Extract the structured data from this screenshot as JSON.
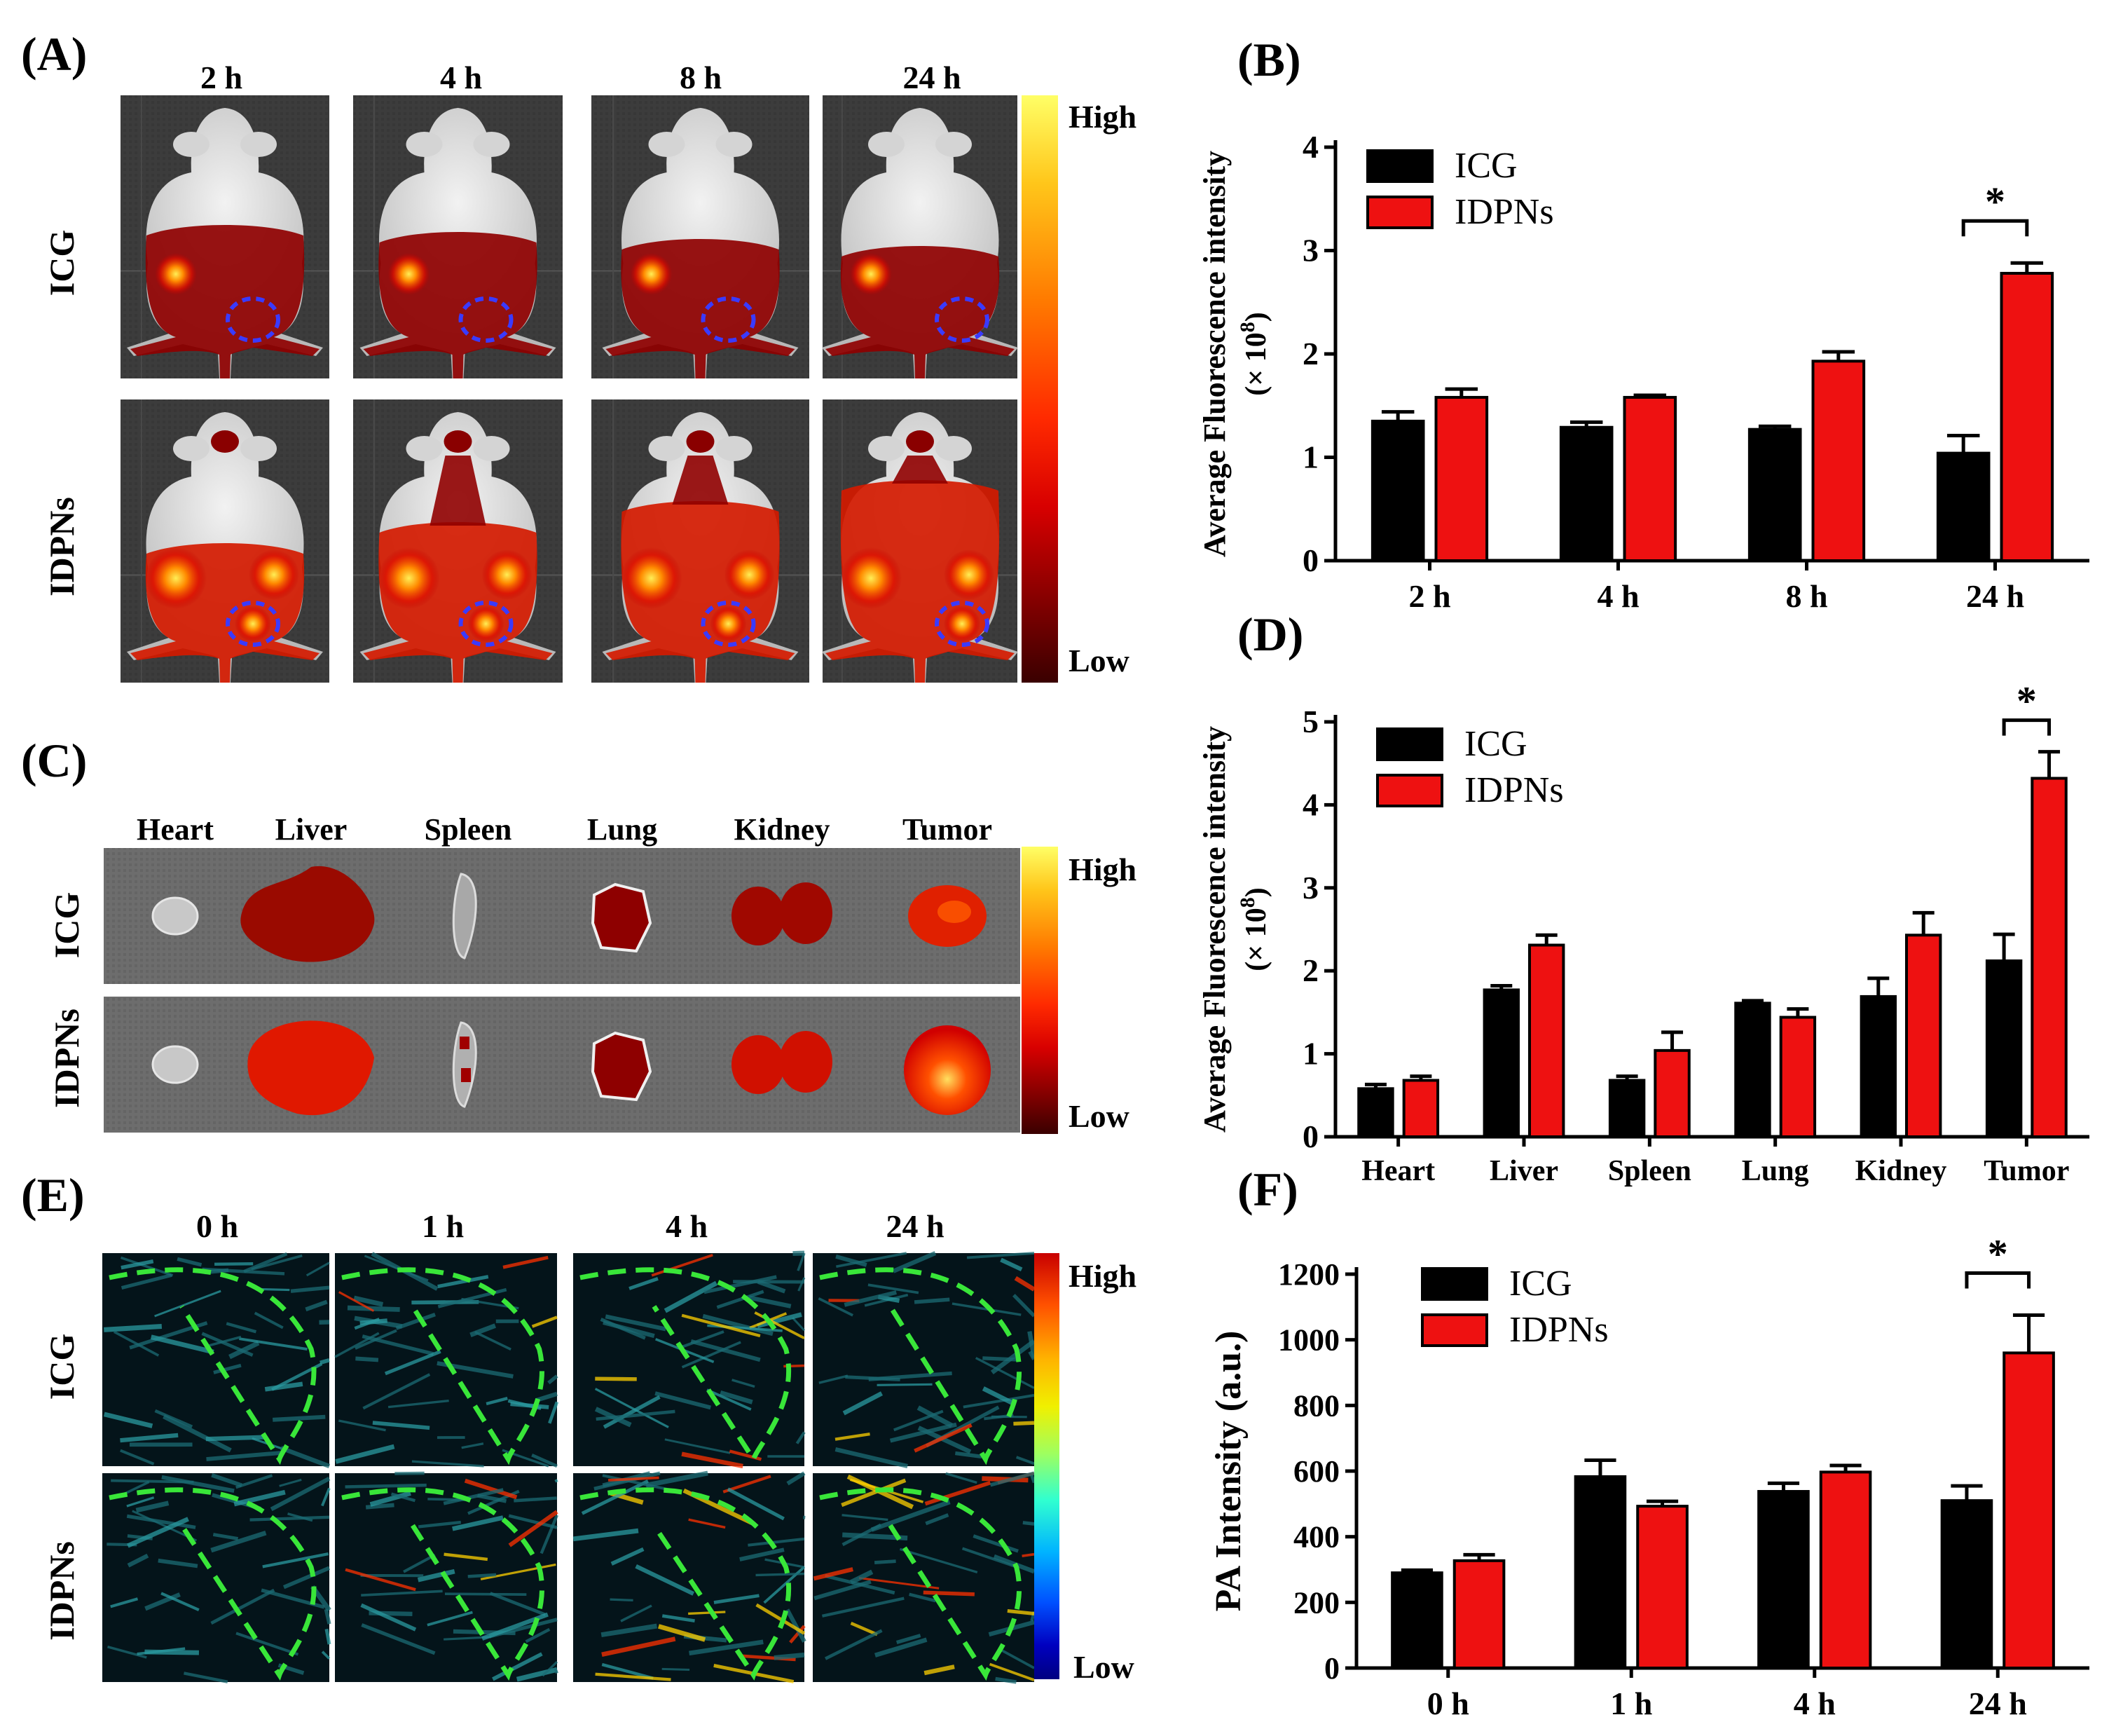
{
  "colors": {
    "icg": "#000000",
    "idpns": "#ee1111",
    "hot_scale": [
      "#ffff66",
      "#ffc61a",
      "#ff7a00",
      "#ff2a00",
      "#d80000",
      "#8a0000",
      "#3a0000"
    ],
    "jet_scale": [
      "#c80000",
      "#ff5000",
      "#ffb400",
      "#f0f000",
      "#9fff5f",
      "#30ffd0",
      "#00b4ff",
      "#0050ff",
      "#0000c0",
      "#000080"
    ],
    "ring": "#3a3aff",
    "tumor_outline": "#39e639"
  },
  "panel_a": {
    "letter": "(A)",
    "times": [
      "2 h",
      "4 h",
      "8 h",
      "24 h"
    ],
    "rows": [
      "ICG",
      "IDPNs"
    ],
    "scale_high": "High",
    "scale_low": "Low"
  },
  "panel_c": {
    "letter": "(C)",
    "organs": [
      "Heart",
      "Liver",
      "Spleen",
      "Lung",
      "Kidney",
      "Tumor"
    ],
    "rows": [
      "ICG",
      "IDPNs"
    ],
    "scale_high": "High",
    "scale_low": "Low"
  },
  "panel_e": {
    "letter": "(E)",
    "times": [
      "0 h",
      "1 h",
      "4 h",
      "24 h"
    ],
    "rows": [
      "ICG",
      "IDPNs"
    ],
    "scale_high": "High",
    "scale_low": "Low"
  },
  "chart_data": [
    {
      "id": "B",
      "letter": "(B)",
      "type": "bar",
      "categories": [
        "2 h",
        "4 h",
        "8 h",
        "24 h"
      ],
      "series": [
        {
          "name": "ICG",
          "values": [
            1.35,
            1.29,
            1.27,
            1.04
          ],
          "errors": [
            0.09,
            0.05,
            0.03,
            0.17
          ]
        },
        {
          "name": "IDPNs",
          "values": [
            1.58,
            1.58,
            1.93,
            2.78
          ],
          "errors": [
            0.08,
            0.02,
            0.09,
            0.1
          ]
        }
      ],
      "ylabel": "Average Fluorescence intensity",
      "ylabel_unit": "(× 10",
      "ylabel_exp": "8",
      "ylabel_close": ")",
      "ylim": [
        0,
        4
      ],
      "yticks": [
        "0",
        "1",
        "2",
        "3",
        "4"
      ],
      "significance": {
        "category": "24 h",
        "label": "*"
      }
    },
    {
      "id": "D",
      "letter": "(D)",
      "type": "bar",
      "categories": [
        "Heart",
        "Liver",
        "Spleen",
        "Lung",
        "Kidney",
        "Tumor"
      ],
      "series": [
        {
          "name": "ICG",
          "values": [
            0.58,
            1.77,
            0.68,
            1.61,
            1.69,
            2.12
          ],
          "errors": [
            0.05,
            0.05,
            0.05,
            0.03,
            0.22,
            0.32
          ]
        },
        {
          "name": "IDPNs",
          "values": [
            0.68,
            2.31,
            1.04,
            1.44,
            2.43,
            4.32
          ],
          "errors": [
            0.05,
            0.12,
            0.22,
            0.1,
            0.27,
            0.32
          ]
        }
      ],
      "ylabel": "Average Fluorescence intensity",
      "ylabel_unit": "(× 10",
      "ylabel_exp": "8",
      "ylabel_close": ")",
      "ylim": [
        0,
        5
      ],
      "yticks": [
        "0",
        "1",
        "2",
        "3",
        "4",
        "5"
      ],
      "significance": {
        "category": "Tumor",
        "label": "*"
      }
    },
    {
      "id": "F",
      "letter": "(F)",
      "type": "bar",
      "categories": [
        "0 h",
        "1 h",
        "4 h",
        "24 h"
      ],
      "series": [
        {
          "name": "ICG",
          "values": [
            290,
            583,
            538,
            510
          ],
          "errors": [
            8,
            50,
            25,
            45
          ]
        },
        {
          "name": "IDPNs",
          "values": [
            327,
            493,
            597,
            960
          ],
          "errors": [
            18,
            15,
            20,
            115
          ]
        }
      ],
      "ylabel": "PA Intensity (a.u.)",
      "ylim": [
        0,
        1200
      ],
      "yticks": [
        "0",
        "200",
        "400",
        "600",
        "800",
        "1000",
        "1200"
      ],
      "significance": {
        "category": "24 h",
        "label": "*"
      }
    }
  ]
}
